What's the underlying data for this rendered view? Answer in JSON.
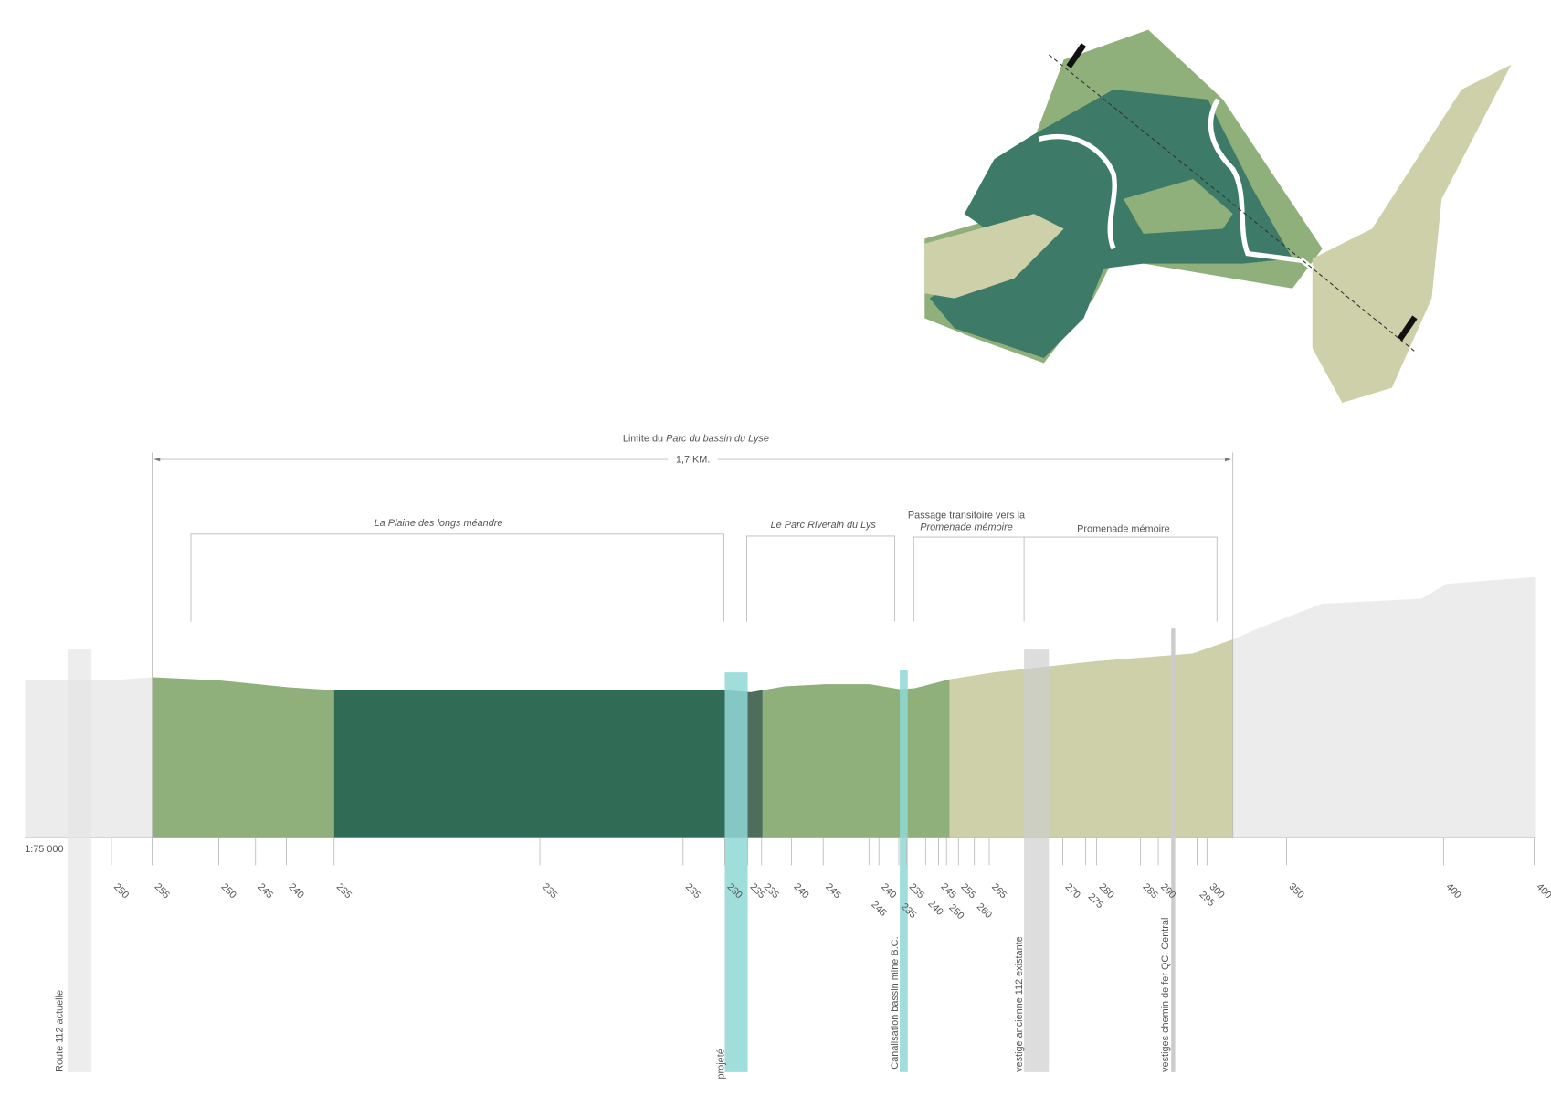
{
  "map": {
    "section_line": true
  },
  "extent": {
    "title_prefix": "Limite du",
    "title_name": "Parc du bassin du Lyse",
    "length": "1,7 KM."
  },
  "zones": [
    {
      "label": "La Plaine des longs méandre"
    },
    {
      "label": "Le Parc Riverain du Lys"
    },
    {
      "label_line1": "Passage transitoire vers la",
      "label_line2": "Promenade mémoire"
    },
    {
      "label": "Promenade mémoire"
    }
  ],
  "scale": "1:75 000",
  "elevations": [
    250,
    255,
    250,
    245,
    240,
    235,
    235,
    235,
    230,
    235,
    235,
    240,
    245,
    240,
    245,
    235,
    235,
    245,
    240,
    250,
    255,
    260,
    265,
    270,
    275,
    280,
    285,
    290,
    295,
    300,
    350,
    400,
    400
  ],
  "markers": [
    "Route 112 actuelle",
    "projeté",
    "Canalisation bassin mine B.C.",
    "vestige ancienne 112 existante",
    "vestiges chemin de fer QC. Central"
  ]
}
